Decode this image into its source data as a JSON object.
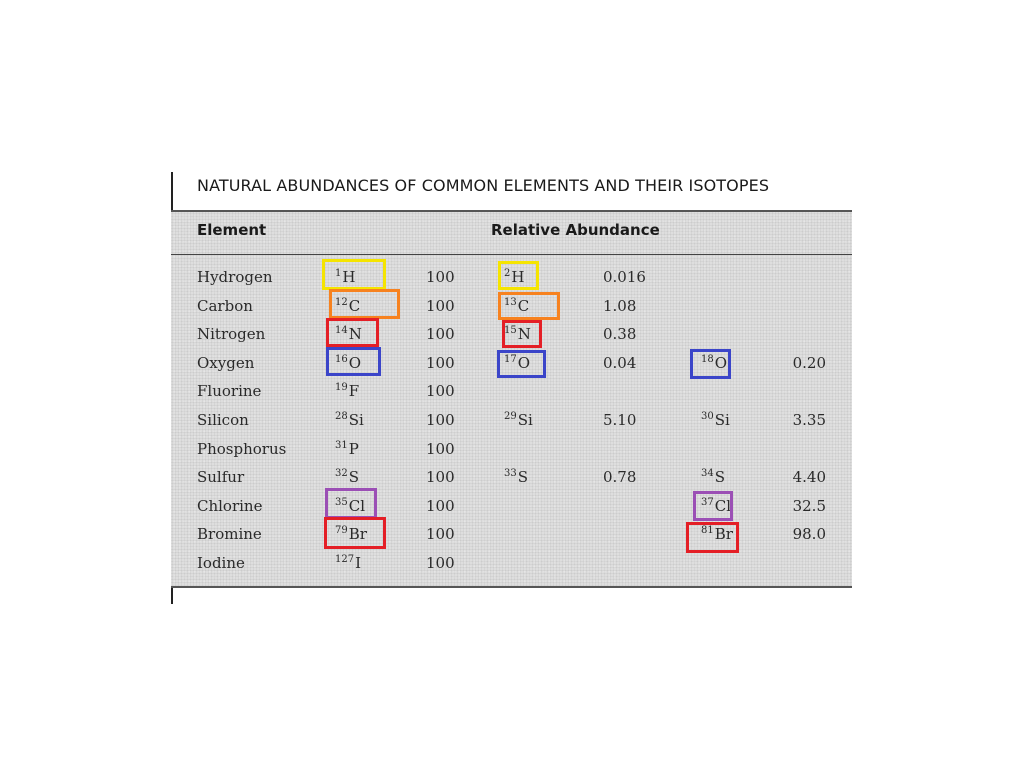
{
  "title": "NATURAL ABUNDANCES OF COMMON ELEMENTS AND THEIR ISOTOPES",
  "headers": {
    "element": "Element",
    "relative_abundance": "Relative Abundance"
  },
  "rows": [
    {
      "element": "Hydrogen",
      "iso1": {
        "mass": "1",
        "symbol": "H"
      },
      "val1": "100",
      "iso2": {
        "mass": "2",
        "symbol": "H"
      },
      "val2": "0.016",
      "iso3": null,
      "val3": ""
    },
    {
      "element": "Carbon",
      "iso1": {
        "mass": "12",
        "symbol": "C"
      },
      "val1": "100",
      "iso2": {
        "mass": "13",
        "symbol": "C"
      },
      "val2": "1.08",
      "iso3": null,
      "val3": ""
    },
    {
      "element": "Nitrogen",
      "iso1": {
        "mass": "14",
        "symbol": "N"
      },
      "val1": "100",
      "iso2": {
        "mass": "15",
        "symbol": "N"
      },
      "val2": "0.38",
      "iso3": null,
      "val3": ""
    },
    {
      "element": "Oxygen",
      "iso1": {
        "mass": "16",
        "symbol": "O"
      },
      "val1": "100",
      "iso2": {
        "mass": "17",
        "symbol": "O"
      },
      "val2": "0.04",
      "iso3": {
        "mass": "18",
        "symbol": "O"
      },
      "val3": "0.20"
    },
    {
      "element": "Fluorine",
      "iso1": {
        "mass": "19",
        "symbol": "F"
      },
      "val1": "100",
      "iso2": null,
      "val2": "",
      "iso3": null,
      "val3": ""
    },
    {
      "element": "Silicon",
      "iso1": {
        "mass": "28",
        "symbol": "Si"
      },
      "val1": "100",
      "iso2": {
        "mass": "29",
        "symbol": "Si"
      },
      "val2": "5.10",
      "iso3": {
        "mass": "30",
        "symbol": "Si"
      },
      "val3": "3.35"
    },
    {
      "element": "Phosphorus",
      "iso1": {
        "mass": "31",
        "symbol": "P"
      },
      "val1": "100",
      "iso2": null,
      "val2": "",
      "iso3": null,
      "val3": ""
    },
    {
      "element": "Sulfur",
      "iso1": {
        "mass": "32",
        "symbol": "S"
      },
      "val1": "100",
      "iso2": {
        "mass": "33",
        "symbol": "S"
      },
      "val2": "0.78",
      "iso3": {
        "mass": "34",
        "symbol": "S"
      },
      "val3": "4.40"
    },
    {
      "element": "Chlorine",
      "iso1": {
        "mass": "35",
        "symbol": "Cl"
      },
      "val1": "100",
      "iso2": null,
      "val2": "",
      "iso3": {
        "mass": "37",
        "symbol": "Cl"
      },
      "val3": "32.5"
    },
    {
      "element": "Bromine",
      "iso1": {
        "mass": "79",
        "symbol": "Br"
      },
      "val1": "100",
      "iso2": null,
      "val2": "",
      "iso3": {
        "mass": "81",
        "symbol": "Br"
      },
      "val3": "98.0"
    },
    {
      "element": "Iodine",
      "iso1": {
        "mass": "127",
        "symbol": "I"
      },
      "val1": "100",
      "iso2": null,
      "val2": "",
      "iso3": null,
      "val3": ""
    }
  ],
  "highlight_colors": {
    "hydrogen": "#f5e400",
    "carbon": "#f7821f",
    "nitrogen": "#e41f26",
    "oxygen": "#3b45c9",
    "chlorine": "#9b4fb5",
    "bromine": "#e41f26"
  }
}
